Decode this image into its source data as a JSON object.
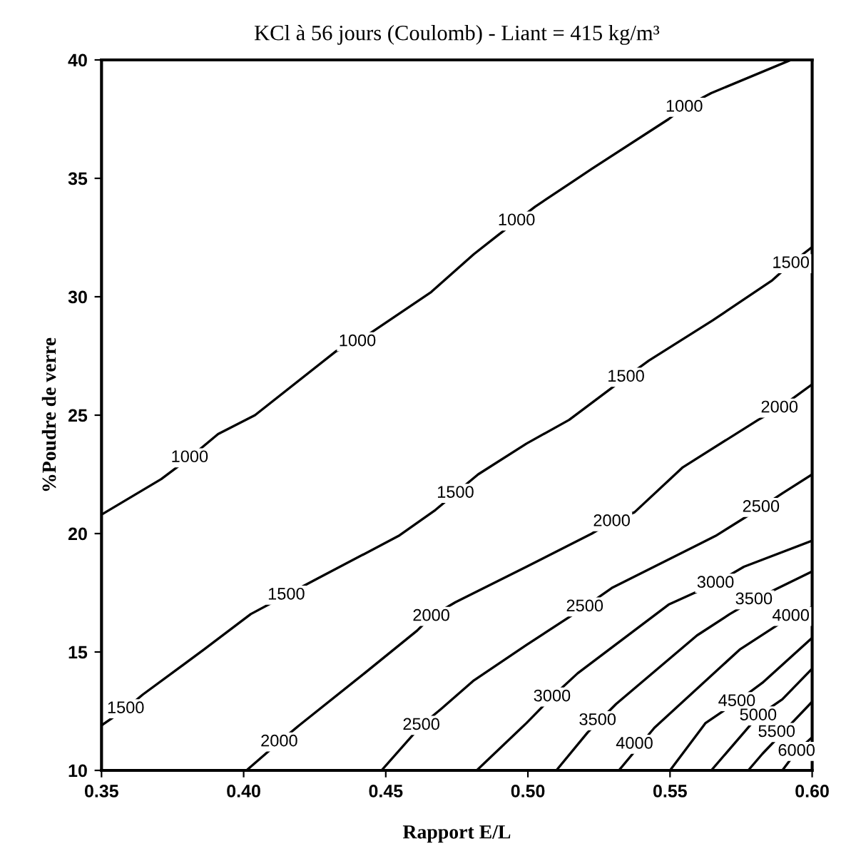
{
  "chart_data": {
    "type": "line",
    "title": "KCl à 56 jours (Coulomb) - Liant = 415 kg/m³",
    "xlabel": "Rapport E/L",
    "ylabel": "%Poudre de verre",
    "xlim": [
      0.35,
      0.6
    ],
    "ylim": [
      10,
      40
    ],
    "xticks": [
      {
        "value": 0.35,
        "label": "0.35"
      },
      {
        "value": 0.4,
        "label": "0.40"
      },
      {
        "value": 0.45,
        "label": "0.45"
      },
      {
        "value": 0.5,
        "label": "0.50"
      },
      {
        "value": 0.55,
        "label": "0.55"
      },
      {
        "value": 0.6,
        "label": "0.60"
      }
    ],
    "yticks": [
      10,
      15,
      20,
      25,
      30,
      35,
      40
    ],
    "grid": false,
    "legend": false,
    "marker": "none",
    "line_style": "solid",
    "series": [
      {
        "color": "#000000",
        "x": [
          0.35,
          0.371,
          0.381,
          0.391,
          0.404,
          0.4325,
          0.44,
          0.4475,
          0.466,
          0.481,
          0.4895,
          0.496,
          0.5025,
          0.5225,
          0.5495,
          0.555,
          0.5645,
          0.5925
        ],
        "values": [
          20.8,
          22.3,
          23.2,
          24.2,
          25.0,
          27.7,
          28.1,
          28.7,
          30.2,
          31.8,
          32.6,
          33.2,
          33.8,
          35.4,
          37.5,
          38.0,
          38.6,
          40
        ]
      },
      {
        "color": "#000000",
        "x": [
          0.35,
          0.3585,
          0.3645,
          0.386,
          0.4025,
          0.415,
          0.426,
          0.4545,
          0.4675,
          0.4745,
          0.4825,
          0.4995,
          0.5145,
          0.5345,
          0.5425,
          0.565,
          0.586,
          0.5925,
          0.6
        ],
        "values": [
          11.9,
          12.6,
          13.2,
          15.1,
          16.6,
          17.4,
          18.1,
          19.9,
          21.0,
          21.7,
          22.5,
          23.8,
          24.8,
          26.6,
          27.3,
          29.0,
          30.7,
          31.4,
          32.1
        ]
      },
      {
        "color": "#000000",
        "x": [
          0.401,
          0.4125,
          0.4195,
          0.4425,
          0.461,
          0.466,
          0.4745,
          0.4995,
          0.5225,
          0.5295,
          0.5375,
          0.5545,
          0.581,
          0.5885,
          0.6
        ],
        "values": [
          10,
          11.2,
          11.9,
          14.1,
          15.9,
          16.5,
          17.1,
          18.6,
          20.0,
          20.5,
          20.9,
          22.8,
          24.8,
          25.3,
          26.3
        ]
      },
      {
        "color": "#000000",
        "x": [
          0.4485,
          0.4625,
          0.4695,
          0.481,
          0.4995,
          0.52,
          0.5295,
          0.566,
          0.582,
          0.5895,
          0.6
        ],
        "values": [
          10,
          11.9,
          12.6,
          13.8,
          15.3,
          16.9,
          17.7,
          19.9,
          21.1,
          21.7,
          22.5
        ]
      },
      {
        "color": "#000000",
        "x": [
          0.482,
          0.4995,
          0.5085,
          0.5175,
          0.5495,
          0.566,
          0.576,
          0.6
        ],
        "values": [
          10,
          12.0,
          13.1,
          14.1,
          17.0,
          17.9,
          18.6,
          19.7
        ]
      },
      {
        "color": "#000000",
        "x": [
          0.51,
          0.521,
          0.531,
          0.5595,
          0.571,
          0.5795,
          0.6
        ],
        "values": [
          10,
          11.6,
          12.8,
          15.7,
          16.6,
          17.2,
          18.4
        ]
      },
      {
        "color": "#000000",
        "x": [
          0.532,
          0.5445,
          0.5745,
          0.586,
          0.5925,
          0.6
        ],
        "values": [
          10,
          11.8,
          15.1,
          16.0,
          16.5,
          16.9
        ]
      },
      {
        "color": "#000000",
        "x": [
          0.55,
          0.5625,
          0.5735,
          0.5825,
          0.6
        ],
        "values": [
          10,
          12.0,
          12.9,
          13.7,
          15.6
        ]
      },
      {
        "color": "#000000",
        "x": [
          0.5645,
          0.576,
          0.581,
          0.5895,
          0.6
        ],
        "values": [
          10,
          11.6,
          12.3,
          13.0,
          14.3
        ]
      },
      {
        "color": "#000000",
        "x": [
          0.5775,
          0.5825,
          0.6
        ],
        "values": [
          10,
          10.7,
          12.9
        ]
      },
      {
        "color": "#000000",
        "x": [
          0.5895,
          0.5945,
          0.6
        ],
        "values": [
          10,
          10.8,
          11.4
        ]
      }
    ],
    "annotations": [
      {
        "text": "1000",
        "x": 0.381,
        "y": 23.2
      },
      {
        "text": "1000",
        "x": 0.44,
        "y": 28.1
      },
      {
        "text": "1000",
        "x": 0.496,
        "y": 33.2
      },
      {
        "text": "1000",
        "x": 0.555,
        "y": 38.0
      },
      {
        "text": "1500",
        "x": 0.3585,
        "y": 12.6
      },
      {
        "text": "1500",
        "x": 0.415,
        "y": 17.4
      },
      {
        "text": "1500",
        "x": 0.4745,
        "y": 21.7
      },
      {
        "text": "1500",
        "x": 0.5345,
        "y": 26.6
      },
      {
        "text": "1500",
        "x": 0.5925,
        "y": 31.4
      },
      {
        "text": "2000",
        "x": 0.4125,
        "y": 11.2
      },
      {
        "text": "2000",
        "x": 0.466,
        "y": 16.5
      },
      {
        "text": "2000",
        "x": 0.5295,
        "y": 20.5
      },
      {
        "text": "2000",
        "x": 0.5885,
        "y": 25.3
      },
      {
        "text": "2500",
        "x": 0.4625,
        "y": 11.9
      },
      {
        "text": "2500",
        "x": 0.52,
        "y": 16.9
      },
      {
        "text": "2500",
        "x": 0.582,
        "y": 21.1
      },
      {
        "text": "3000",
        "x": 0.5085,
        "y": 13.1
      },
      {
        "text": "3000",
        "x": 0.566,
        "y": 17.9
      },
      {
        "text": "3500",
        "x": 0.5245,
        "y": 12.1
      },
      {
        "text": "3500",
        "x": 0.5795,
        "y": 17.2
      },
      {
        "text": "4000",
        "x": 0.5375,
        "y": 11.1
      },
      {
        "text": "4000",
        "x": 0.5925,
        "y": 16.5
      },
      {
        "text": "4500",
        "x": 0.5735,
        "y": 12.9
      },
      {
        "text": "5000",
        "x": 0.581,
        "y": 12.3
      },
      {
        "text": "5500",
        "x": 0.5875,
        "y": 11.6
      },
      {
        "text": "6000",
        "x": 0.5945,
        "y": 10.8
      }
    ]
  }
}
